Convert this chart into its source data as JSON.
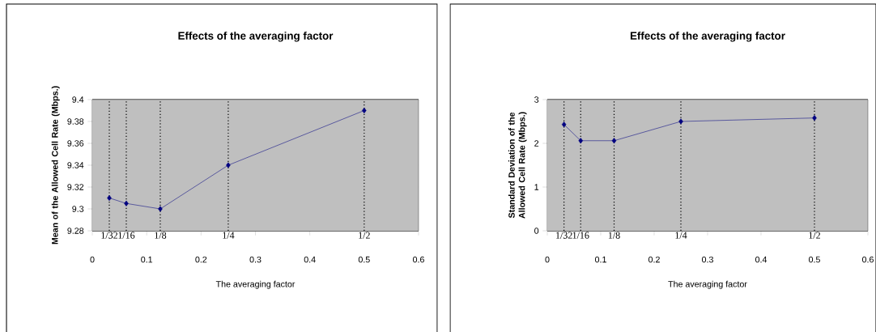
{
  "chart_data": [
    {
      "type": "line",
      "title": "Effects of the averaging factor",
      "xlabel": "The averaging factor",
      "ylabel": "Mean of the Allowed Cell Rate (Mbps.)",
      "x": [
        0.03125,
        0.0625,
        0.125,
        0.25,
        0.5
      ],
      "series": [
        {
          "color": "#000080",
          "values": [
            9.31,
            9.305,
            9.3,
            9.34,
            9.39
          ]
        }
      ],
      "xlim": [
        0,
        0.6
      ],
      "xticks": [
        0,
        0.1,
        0.2,
        0.3,
        0.4,
        0.5,
        0.6
      ],
      "ylim": [
        9.28,
        9.4
      ],
      "yticks": [
        9.28,
        9.3,
        9.32,
        9.34,
        9.36,
        9.38,
        9.4
      ],
      "grid": "y",
      "marker": "diamond",
      "line_style": "solid",
      "ref_lines": [
        {
          "axis": "x",
          "value": 0.03125,
          "line_style": "dotted"
        },
        {
          "axis": "x",
          "value": 0.0625,
          "line_style": "dotted"
        },
        {
          "axis": "x",
          "value": 0.125,
          "line_style": "dotted"
        },
        {
          "axis": "x",
          "value": 0.25,
          "line_style": "dotted"
        },
        {
          "axis": "x",
          "value": 0.5,
          "line_style": "dotted"
        }
      ],
      "annotations": [
        "1/32",
        "1/16",
        "1/8",
        "1/4",
        "1/2"
      ]
    },
    {
      "type": "line",
      "title": "Effects of the averaging factor",
      "xlabel": "The averaging factor",
      "ylabel": "Standard Deviation of the Allowed Cell Rate (Mbps.)",
      "x": [
        0.03125,
        0.0625,
        0.125,
        0.25,
        0.5
      ],
      "series": [
        {
          "color": "#000080",
          "values": [
            2.43,
            2.06,
            2.06,
            2.5,
            2.58
          ]
        }
      ],
      "xlim": [
        0,
        0.6
      ],
      "xticks": [
        0,
        0.1,
        0.2,
        0.3,
        0.4,
        0.5,
        0.6
      ],
      "ylim": [
        0,
        3
      ],
      "yticks": [
        0,
        1,
        2,
        3
      ],
      "grid": "y",
      "marker": "diamond",
      "line_style": "solid",
      "ref_lines": [
        {
          "axis": "x",
          "value": 0.03125,
          "line_style": "dotted"
        },
        {
          "axis": "x",
          "value": 0.0625,
          "line_style": "dotted"
        },
        {
          "axis": "x",
          "value": 0.125,
          "line_style": "dotted"
        },
        {
          "axis": "x",
          "value": 0.25,
          "line_style": "dotted"
        },
        {
          "axis": "x",
          "value": 0.5,
          "line_style": "dotted"
        }
      ],
      "annotations": [
        "1/32",
        "1/16",
        "1/8",
        "1/4",
        "1/2"
      ]
    }
  ]
}
